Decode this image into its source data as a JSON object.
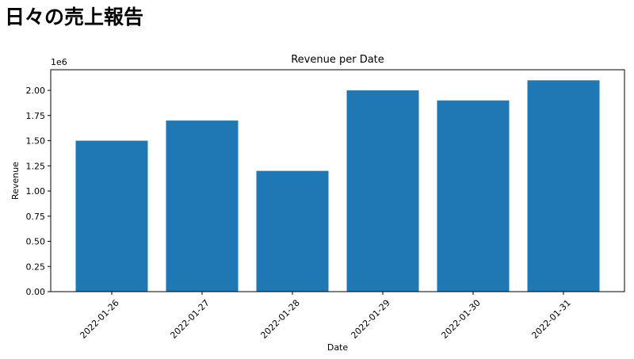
{
  "page": {
    "title": "日々の売上報告"
  },
  "chart_data": {
    "type": "bar",
    "title": "Revenue per Date",
    "xlabel": "Date",
    "ylabel": "Revenue",
    "y_offset_label": "1e6",
    "categories": [
      "2022-01-26",
      "2022-01-27",
      "2022-01-28",
      "2022-01-29",
      "2022-01-30",
      "2022-01-31"
    ],
    "values": [
      1500000,
      1700000,
      1200000,
      2000000,
      1900000,
      2100000
    ],
    "y_ticks": [
      0,
      250000,
      500000,
      750000,
      1000000,
      1250000,
      1500000,
      1750000,
      2000000
    ],
    "y_tick_labels": [
      "0.00",
      "0.25",
      "0.50",
      "0.75",
      "1.00",
      "1.25",
      "1.50",
      "1.75",
      "2.00"
    ],
    "ylim": [
      0,
      2205000
    ],
    "grid": false,
    "bar_color": "#1f77b4"
  }
}
